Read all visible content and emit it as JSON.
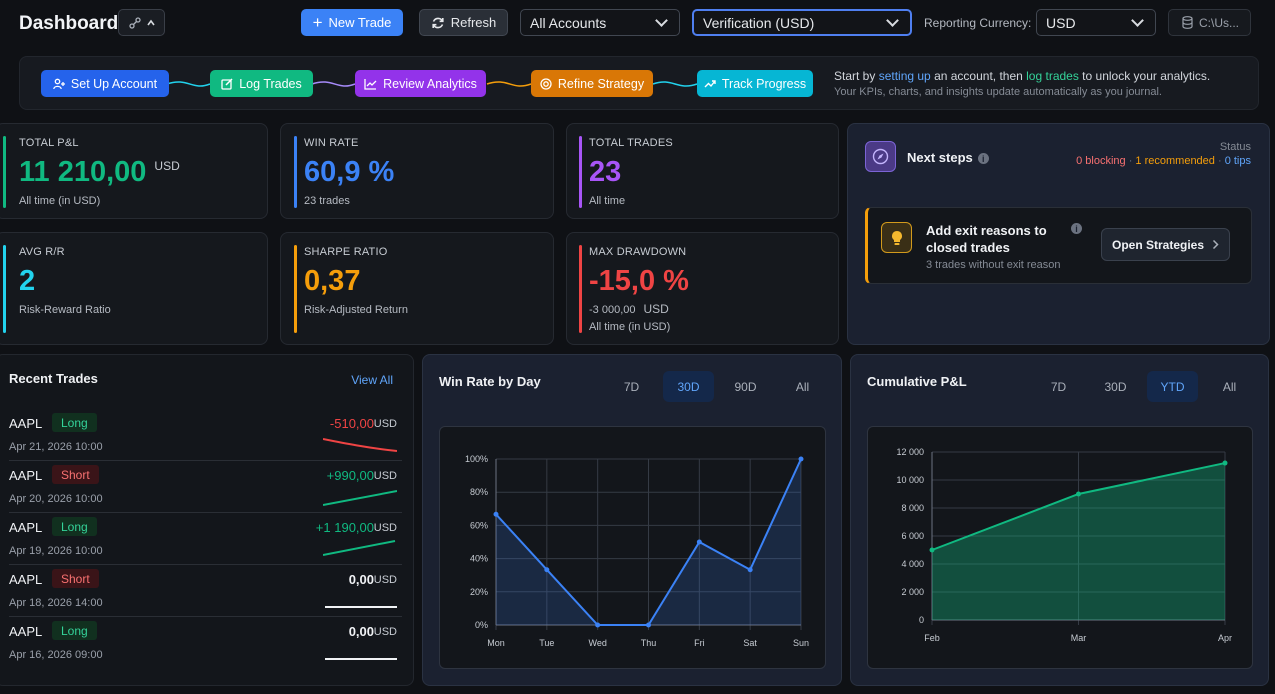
{
  "header": {
    "title": "Dashboard",
    "new_trade": "New Trade",
    "refresh": "Refresh",
    "account_select": "All Accounts",
    "verification_select": "Verification (USD)",
    "reporting_label": "Reporting Currency:",
    "currency_select": "USD",
    "path": "C:\\Us..."
  },
  "workflow": {
    "steps": [
      {
        "label": "Set Up Account",
        "color": "#2563eb"
      },
      {
        "label": "Log Trades",
        "color": "#10b981"
      },
      {
        "label": "Review Analytics",
        "color": "#9333ea"
      },
      {
        "label": "Refine Strategy",
        "color": "#d97706"
      },
      {
        "label": "Track Progress",
        "color": "#06b6d4"
      }
    ],
    "text_pre": "Start by ",
    "text_link1": "setting up",
    "text_mid": " an account, then ",
    "text_link2": "log trades",
    "text_post": " to unlock your analytics.",
    "subtext": "Your KPIs, charts, and insights update automatically as you journal."
  },
  "kpis": {
    "total_pnl": {
      "label": "TOTAL P&L",
      "value": "11 210,00",
      "unit": "USD",
      "sub": "All time (in USD)",
      "color": "#10b981"
    },
    "win_rate": {
      "label": "WIN RATE",
      "value": "60,9 %",
      "sub": "23 trades",
      "color": "#3b82f6"
    },
    "total_trades": {
      "label": "TOTAL TRADES",
      "value": "23",
      "sub": "All time",
      "color": "#a855f7"
    },
    "avg_rr": {
      "label": "AVG R/R",
      "value": "2",
      "sub": "Risk-Reward Ratio",
      "color": "#22d3ee"
    },
    "sharpe": {
      "label": "SHARPE RATIO",
      "value": "0,37",
      "sub": "Risk-Adjusted Return",
      "color": "#f59e0b"
    },
    "max_dd": {
      "label": "MAX DRAWDOWN",
      "value": "-15,0 %",
      "sub_value": "-3 000,00",
      "sub_unit": "USD",
      "sub": "All time (in USD)",
      "color": "#ef4444"
    }
  },
  "next_steps": {
    "title": "Next steps",
    "status_label": "Status",
    "blocking": "0 blocking",
    "recommended": "1 recommended",
    "tips": "0 tips",
    "task_title": "Add exit reasons to closed trades",
    "task_sub": "3 trades without exit reason",
    "task_button": "Open Strategies"
  },
  "recent_trades": {
    "title": "Recent Trades",
    "view_all": "View All",
    "rows": [
      {
        "symbol": "AAPL",
        "side": "Long",
        "date": "Apr 21, 2026 10:00",
        "pnl": "-510,00",
        "currency": "USD",
        "trend": "down"
      },
      {
        "symbol": "AAPL",
        "side": "Short",
        "date": "Apr 20, 2026 10:00",
        "pnl": "+990,00",
        "currency": "USD",
        "trend": "up"
      },
      {
        "symbol": "AAPL",
        "side": "Long",
        "date": "Apr 19, 2026 10:00",
        "pnl": "+1 190,00",
        "currency": "USD",
        "trend": "up"
      },
      {
        "symbol": "AAPL",
        "side": "Short",
        "date": "Apr 18, 2026 14:00",
        "pnl": "0,00",
        "currency": "USD",
        "trend": "flat"
      },
      {
        "symbol": "AAPL",
        "side": "Long",
        "date": "Apr 16, 2026 09:00",
        "pnl": "0,00",
        "currency": "USD",
        "trend": "flat"
      }
    ]
  },
  "win_rate_panel": {
    "title": "Win Rate by Day",
    "ranges": [
      "7D",
      "30D",
      "90D",
      "All"
    ],
    "active": "30D"
  },
  "cum_panel": {
    "title": "Cumulative P&L",
    "ranges": [
      "7D",
      "30D",
      "YTD",
      "All"
    ],
    "active": "YTD"
  },
  "chart_data": [
    {
      "type": "area",
      "title": "Win Rate by Day",
      "categories": [
        "Mon",
        "Tue",
        "Wed",
        "Thu",
        "Fri",
        "Sat",
        "Sun"
      ],
      "values": [
        66.7,
        33.3,
        0,
        0,
        50,
        33.3,
        100
      ],
      "ylim": [
        0,
        100
      ],
      "yticks": [
        "0%",
        "20%",
        "40%",
        "60%",
        "80%",
        "100%"
      ],
      "color": "#3b82f6",
      "grid": true
    },
    {
      "type": "area",
      "title": "Cumulative P&L",
      "categories": [
        "Feb",
        "Mar",
        "Apr"
      ],
      "values": [
        5000,
        9000,
        11210
      ],
      "ylim": [
        0,
        12000
      ],
      "yticks": [
        "0",
        "2 000",
        "4 000",
        "6 000",
        "8 000",
        "10 000",
        "12 000"
      ],
      "color": "#10b981",
      "grid": true
    }
  ]
}
